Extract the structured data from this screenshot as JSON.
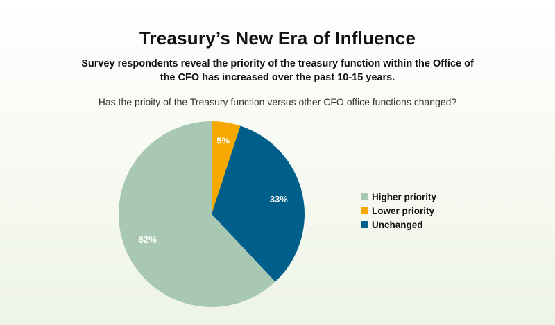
{
  "title": "Treasury’s New Era of Influence",
  "subtitle": "Survey respondents reveal the priority of the treasury function within the Office of the CFO has increased over the past 10-15 years.",
  "question": "Has the prioity of the Treasury function versus other CFO office functions changed?",
  "chart_data": {
    "type": "pie",
    "slices": [
      {
        "label": "Lower priority",
        "value": 5,
        "display": "5%",
        "color": "#f5a800"
      },
      {
        "label": "Unchanged",
        "value": 33,
        "display": "33%",
        "color": "#005f8a"
      },
      {
        "label": "Higher priority",
        "value": 62,
        "display": "62%",
        "color": "#a9c8b4"
      }
    ],
    "legend": [
      "Higher priority",
      "Lower priority",
      "Unchanged"
    ],
    "legend_position": "right"
  }
}
